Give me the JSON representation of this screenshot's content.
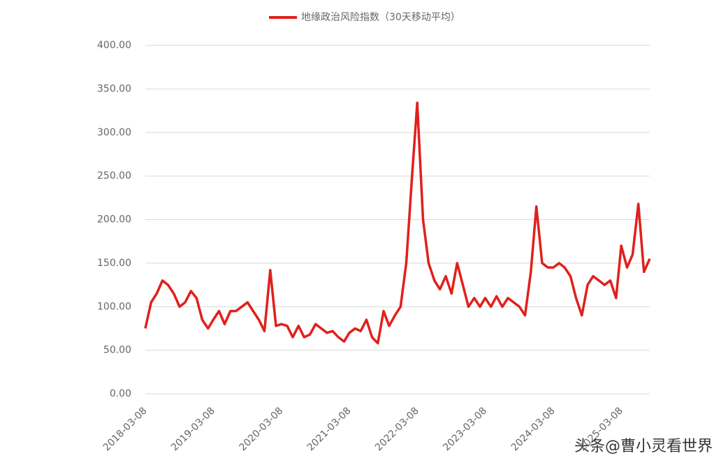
{
  "chart_data": {
    "type": "line",
    "series": [
      {
        "name": "地缘政治风险指数（30天移动平均）",
        "color": "#e0201b",
        "values": [
          75,
          105,
          115,
          130,
          125,
          115,
          100,
          105,
          118,
          110,
          85,
          75,
          85,
          95,
          80,
          95,
          95,
          100,
          105,
          95,
          85,
          72,
          142,
          78,
          80,
          78,
          65,
          78,
          65,
          68,
          80,
          75,
          70,
          72,
          65,
          60,
          70,
          75,
          72,
          85,
          65,
          58,
          95,
          78,
          90,
          100,
          150,
          250,
          334,
          200,
          150,
          130,
          120,
          135,
          115,
          150,
          125,
          100,
          110,
          100,
          110,
          100,
          112,
          100,
          110,
          105,
          100,
          90,
          140,
          215,
          150,
          145,
          145,
          150,
          145,
          135,
          110,
          90,
          125,
          135,
          130,
          125,
          130,
          110,
          170,
          145,
          160,
          218,
          140,
          155
        ]
      }
    ],
    "x": [
      "2018-03-08",
      "2018-04-08",
      "2018-05-08",
      "2018-06-08",
      "2018-07-08",
      "2018-08-08",
      "2018-09-08",
      "2018-10-08",
      "2018-11-08",
      "2018-12-08",
      "2019-01-08",
      "2019-02-08",
      "2019-03-08",
      "2019-04-08",
      "2019-05-08",
      "2019-06-08",
      "2019-07-08",
      "2019-08-08",
      "2019-09-08",
      "2019-10-08",
      "2019-11-08",
      "2019-12-08",
      "2020-01-08",
      "2020-02-08",
      "2020-03-08",
      "2020-04-08",
      "2020-05-08",
      "2020-06-08",
      "2020-07-08",
      "2020-08-08",
      "2020-09-08",
      "2020-10-08",
      "2020-11-08",
      "2020-12-08",
      "2021-01-08",
      "2021-02-08",
      "2021-03-08",
      "2021-04-08",
      "2021-05-08",
      "2021-06-08",
      "2021-07-08",
      "2021-08-08",
      "2021-09-08",
      "2021-10-08",
      "2021-11-08",
      "2021-12-08",
      "2022-01-08",
      "2022-02-08",
      "2022-03-08",
      "2022-04-08",
      "2022-05-08",
      "2022-06-08",
      "2022-07-08",
      "2022-08-08",
      "2022-09-08",
      "2022-10-08",
      "2022-11-08",
      "2022-12-08",
      "2023-01-08",
      "2023-02-08",
      "2023-03-08",
      "2023-04-08",
      "2023-05-08",
      "2023-06-08",
      "2023-07-08",
      "2023-08-08",
      "2023-09-08",
      "2023-10-08",
      "2023-11-08",
      "2023-12-08",
      "2024-01-08",
      "2024-02-08",
      "2024-03-08",
      "2024-04-08",
      "2024-05-08",
      "2024-06-08",
      "2024-07-08",
      "2024-08-08",
      "2024-09-08",
      "2024-10-08",
      "2024-11-08",
      "2024-12-08",
      "2025-01-08",
      "2025-02-08",
      "2025-03-08",
      "2025-04-08",
      "2025-05-08",
      "2025-06-08",
      "2025-07-08",
      "2025-08-08"
    ],
    "xlim": [
      "2018-03-08",
      "2025-08-08"
    ],
    "xticks": [
      "2018-03-08",
      "2019-03-08",
      "2020-03-08",
      "2021-03-08",
      "2022-03-08",
      "2023-03-08",
      "2024-03-08",
      "2025-03-08"
    ],
    "ylim": [
      0,
      400
    ],
    "yticks": [
      {
        "value": 0,
        "label": "0.00"
      },
      {
        "value": 50,
        "label": "50.00"
      },
      {
        "value": 100,
        "label": "100.00"
      },
      {
        "value": 150,
        "label": "150.00"
      },
      {
        "value": 200,
        "label": "200.00"
      },
      {
        "value": 250,
        "label": "250.00"
      },
      {
        "value": 300,
        "label": "300.00"
      },
      {
        "value": 350,
        "label": "350.00"
      },
      {
        "value": 400,
        "label": "400.00"
      }
    ],
    "grid": true,
    "legend": "top",
    "watermark": "头条@曹小灵看世界"
  }
}
